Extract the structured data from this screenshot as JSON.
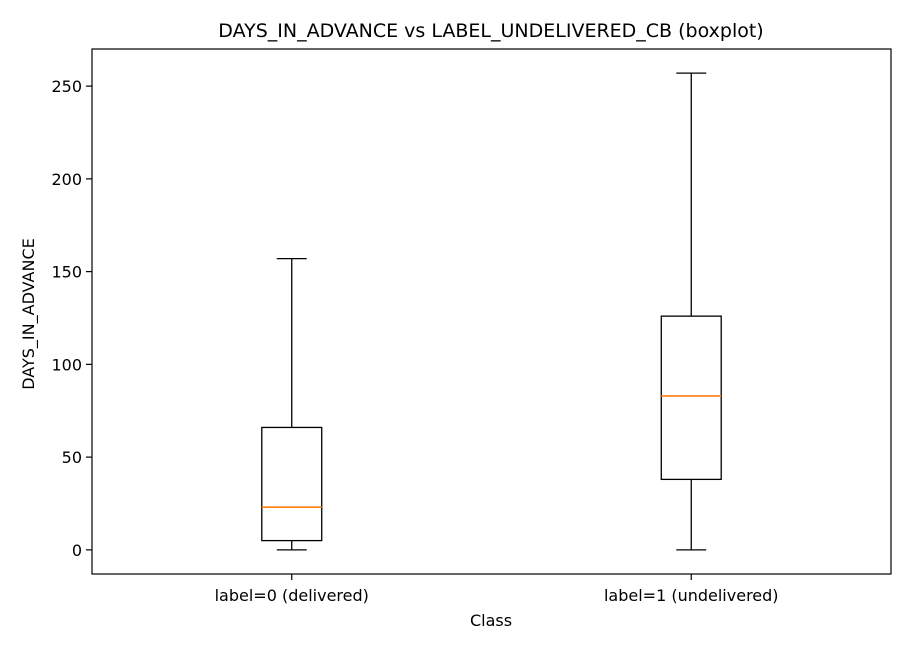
{
  "chart_data": {
    "type": "boxplot",
    "title": "DAYS_IN_ADVANCE vs LABEL_UNDELIVERED_CB (boxplot)",
    "xlabel": "Class",
    "ylabel": "DAYS_IN_ADVANCE",
    "ylim": [
      -13,
      270
    ],
    "yticks": [
      0,
      50,
      100,
      150,
      200,
      250
    ],
    "grid": false,
    "categories": [
      "label=0 (delivered)",
      "label=1 (undelivered)"
    ],
    "boxes": [
      {
        "category": "label=0 (delivered)",
        "whisker_low": 0,
        "q1": 5,
        "median": 23,
        "q3": 66,
        "whisker_high": 157
      },
      {
        "category": "label=1 (undelivered)",
        "whisker_low": 0,
        "q1": 38,
        "median": 83,
        "q3": 126,
        "whisker_high": 257
      }
    ],
    "colors": {
      "box": "#000000",
      "median": "#ff7f0e"
    }
  }
}
